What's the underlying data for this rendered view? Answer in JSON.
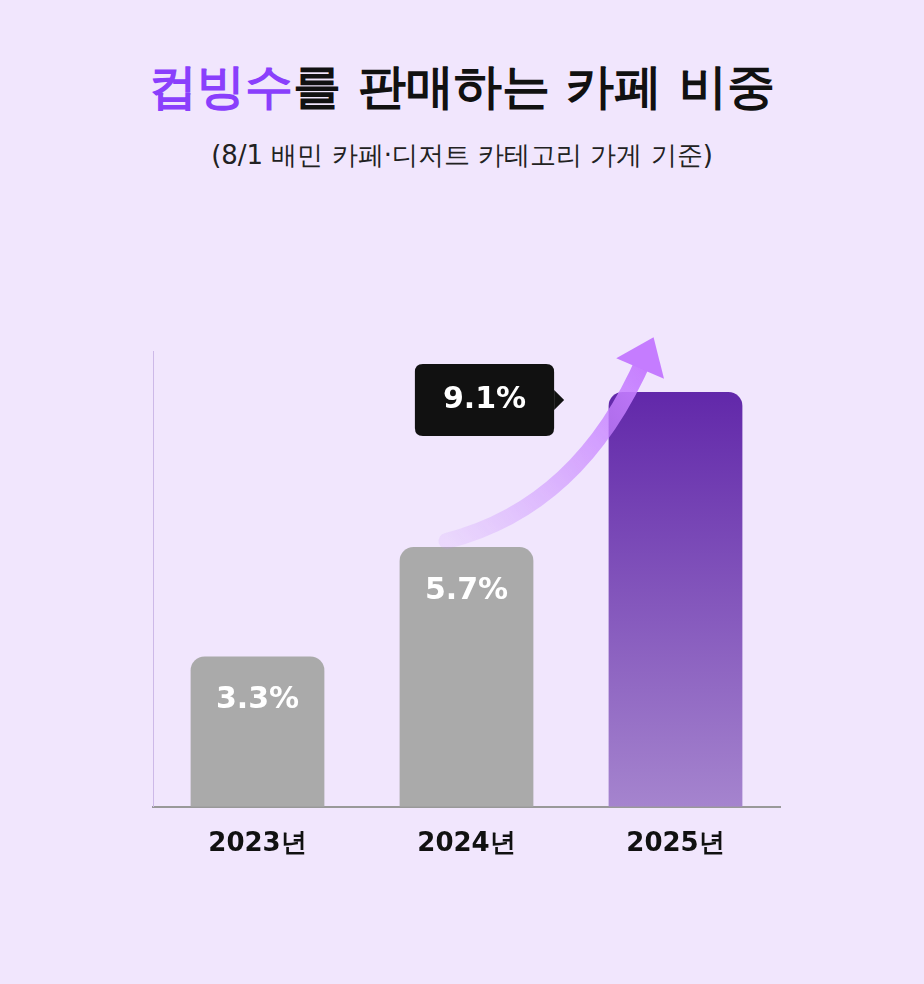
{
  "chart_data": {
    "type": "bar",
    "title": "컵빙수를 판매하는 카페 비중",
    "subtitle": "(8/1 배민 카페·디저트 카테고리 가게 기준)",
    "categories": [
      "2023년",
      "2024년",
      "2025년"
    ],
    "values": [
      3.3,
      5.7,
      9.1
    ],
    "value_labels": [
      "3.3%",
      "5.7%",
      "9.1%"
    ],
    "colors": [
      "#aaaaaa",
      "#aaaaaa",
      "#5b1fa6"
    ],
    "ylim": [
      0,
      10
    ],
    "grid": false,
    "data_labels": true,
    "tick_labels": "x"
  }
}
